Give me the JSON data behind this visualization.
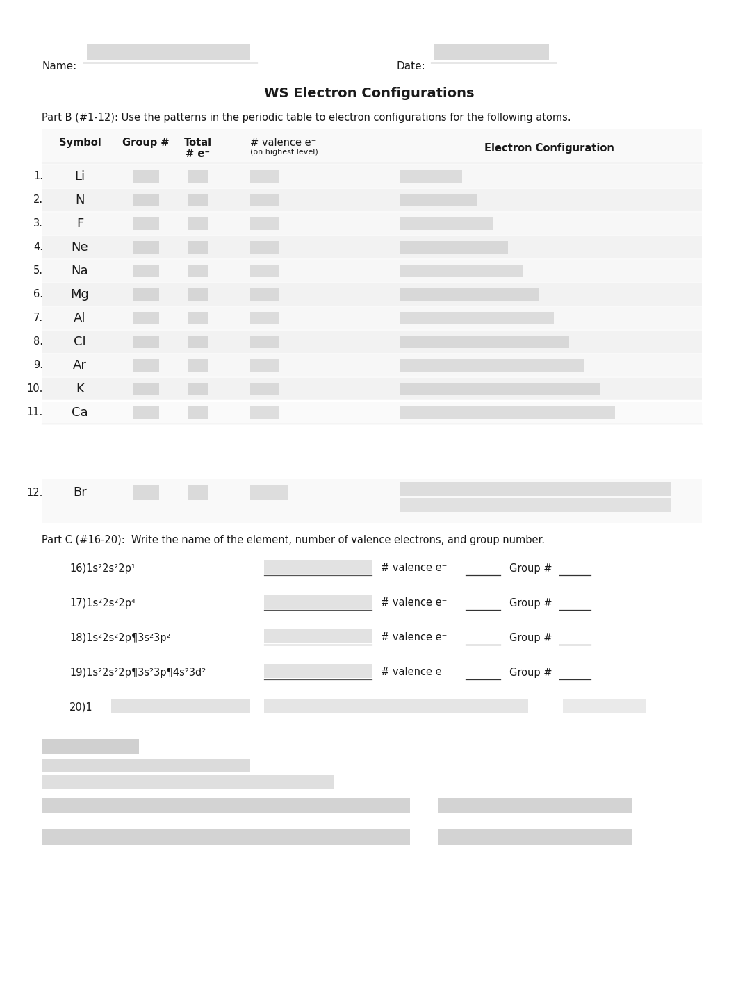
{
  "title": "WS Electron Configurations",
  "part_b_instruction": "Part B (#1-12): Use the patterns in the periodic table to electron configurations for the following atoms.",
  "part_c_instruction": "Part C (#16-20):  Write the name of the element, number of valence electrons, and group number.",
  "elements": [
    "Li",
    "N",
    "F",
    "Ne",
    "Na",
    "Mg",
    "Al",
    "Cl",
    "Ar",
    "K",
    "Ca"
  ],
  "row_numbers": [
    "1.",
    "2.",
    "3.",
    "4.",
    "5.",
    "6.",
    "7.",
    "8.",
    "9.",
    "10.",
    "11."
  ],
  "item12_num": "12.",
  "item12_sym": "Br",
  "part_c_items": [
    "16)1s²2s²2p¹",
    "17)1s²2s²2p⁴",
    "18)1s²2s²2p¶3s²3p²",
    "19)1s²2s²2p¶3s²3p¶4s²3d²"
  ],
  "bg_color": "#ffffff",
  "text_color": "#1a1a1a",
  "gray_table_bg": "#efefef",
  "blur_light": "#c8c8c8",
  "blur_dark": "#a8a8a8"
}
